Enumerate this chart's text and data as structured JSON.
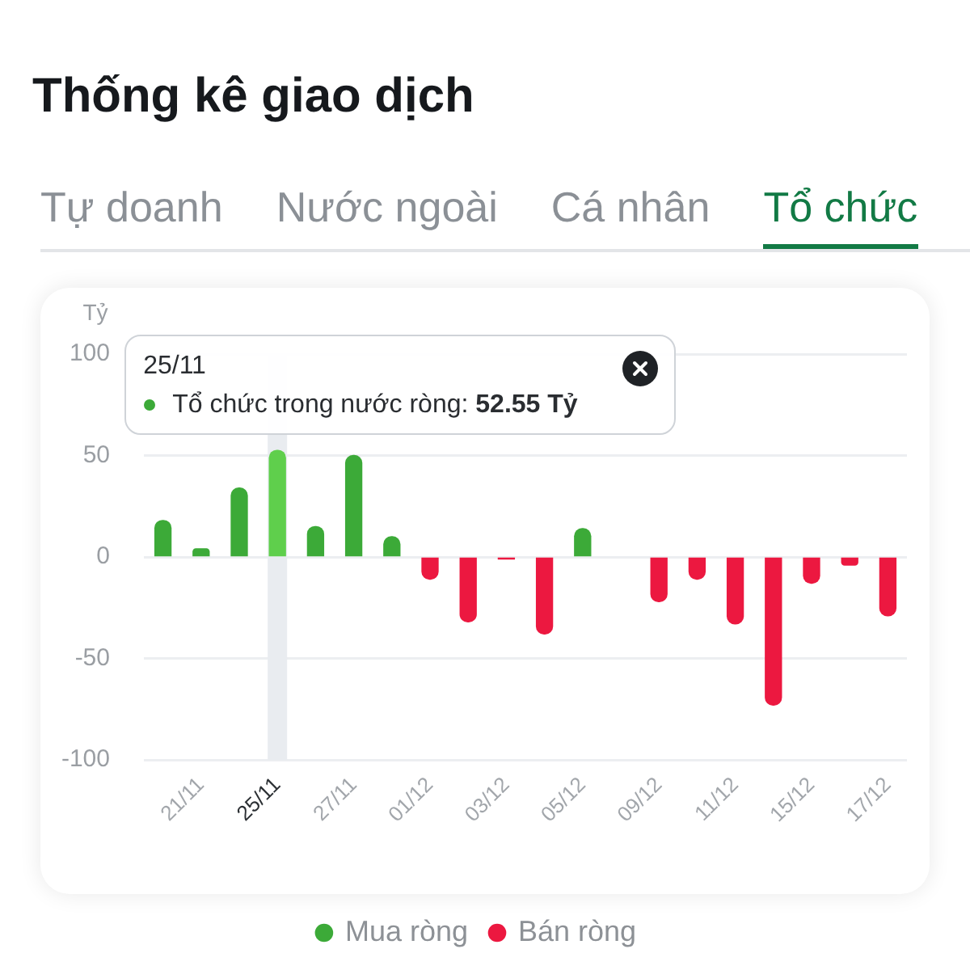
{
  "chart_data": {
    "type": "bar",
    "title": "Thống kê giao dịch",
    "subtitle": "Tổ chức",
    "ylabel": "Tỷ",
    "categories": [
      null,
      "21/11",
      null,
      "25/11",
      null,
      "27/11",
      null,
      "01/12",
      null,
      "03/12",
      null,
      "05/12",
      null,
      "09/12",
      null,
      "11/12",
      null,
      "15/12",
      null,
      "17/12"
    ],
    "series": [
      {
        "name": "Mua ròng",
        "color": "#3caa38",
        "colors": [
          "#3caa38",
          "#3caa38",
          "#3caa38",
          "#5fcf4c",
          "#3caa38",
          "#3caa38",
          "#3caa38",
          "#3caa38",
          "#3caa38",
          "#3caa38",
          "#3caa38",
          "#3caa38",
          "#3caa38",
          "#3caa38",
          "#3caa38",
          "#3caa38",
          "#3caa38",
          "#3caa38",
          "#3caa38",
          "#3caa38"
        ],
        "values": [
          18,
          4,
          34,
          52.55,
          15,
          50,
          10,
          null,
          null,
          null,
          null,
          14,
          null,
          null,
          null,
          null,
          null,
          null,
          null,
          null
        ]
      },
      {
        "name": "Bán ròng",
        "color": "#ec1840",
        "values": [
          null,
          null,
          null,
          null,
          null,
          null,
          null,
          -11,
          -32,
          -1,
          -38,
          null,
          null,
          -22,
          -11,
          -33,
          -73,
          -13,
          -4,
          -29
        ]
      }
    ],
    "ylim": [
      -100,
      100
    ],
    "yticks": [
      -100,
      -50,
      0,
      50,
      100
    ],
    "grid": "y",
    "legend": "bottom",
    "bands": [
      {
        "axis": "x",
        "from": "25/11",
        "to": "25/11",
        "color": "#e9ecf0"
      }
    ],
    "annotations": [
      "Tự doanh",
      "Nước ngoài",
      "Cá nhân",
      {
        "text": "Tổ chức trong nước ròng: 52.55 Tỷ",
        "x": "25/11",
        "y": 52.55
      }
    ]
  }
}
